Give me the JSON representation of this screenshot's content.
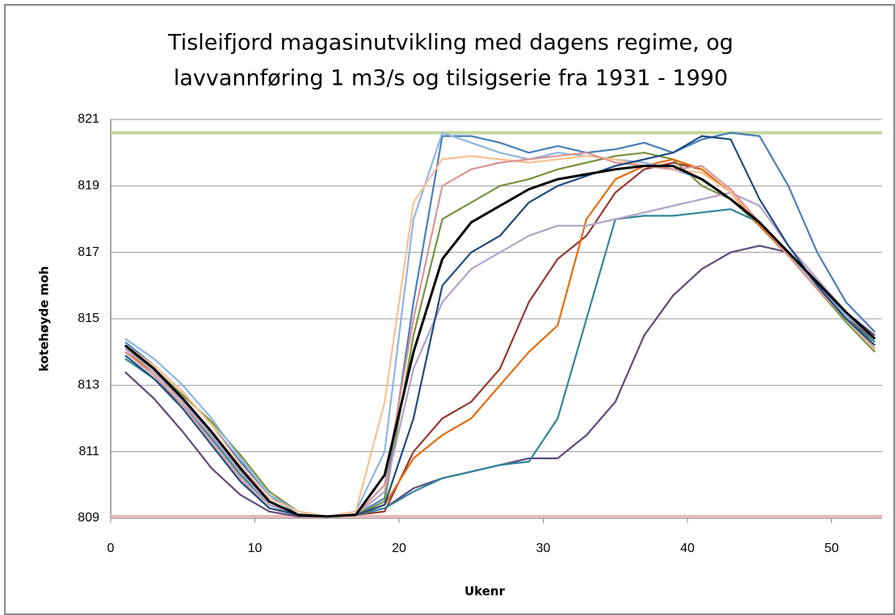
{
  "chart_data": {
    "type": "line",
    "title": [
      "Tisleifjord  magasinutvikling med dagens regime, og",
      "lavvannføring 1 m3/s og tilsigserie fra 1931 - 1990"
    ],
    "x_label": "Ukenr",
    "y_label": "kotehøyde moh",
    "xlim": [
      0,
      53.5
    ],
    "xticks": [
      0,
      10,
      20,
      30,
      40,
      50
    ],
    "ylim": [
      809,
      821
    ],
    "yticks": [
      809,
      811,
      813,
      815,
      817,
      819,
      821
    ],
    "grid": true,
    "x": [
      1,
      3,
      5,
      7,
      9,
      11,
      13,
      15,
      17,
      19,
      21,
      23,
      25,
      27,
      29,
      31,
      33,
      35,
      37,
      39,
      41,
      43,
      45,
      47,
      49,
      51,
      53
    ],
    "reference_lines": [
      {
        "value": 820.6,
        "color": "#c3d69b"
      },
      {
        "value": 809.05,
        "color": "#e6b9b8"
      }
    ],
    "series": [
      {
        "color": "#4a7ebb",
        "values": [
          814.3,
          813.6,
          812.8,
          811.8,
          810.7,
          809.7,
          809.1,
          809.05,
          809.1,
          809.6,
          815.5,
          820.5,
          820.5,
          820.3,
          820.0,
          820.2,
          820.0,
          820.1,
          820.3,
          820.0,
          820.4,
          820.6,
          820.5,
          819.0,
          817.0,
          815.5,
          814.6
        ]
      },
      {
        "color": "#953735",
        "values": [
          814.0,
          813.4,
          812.5,
          811.5,
          810.4,
          809.4,
          809.1,
          809.05,
          809.1,
          809.2,
          811.0,
          812.0,
          812.5,
          813.5,
          815.5,
          816.8,
          817.5,
          818.8,
          819.5,
          819.7,
          819.5,
          818.8,
          817.9,
          817.0,
          816.0,
          815.1,
          814.3
        ]
      },
      {
        "color": "#77933c",
        "values": [
          814.1,
          813.5,
          812.7,
          811.9,
          810.9,
          809.8,
          809.2,
          809.05,
          809.1,
          809.5,
          814.5,
          818.0,
          818.5,
          819.0,
          819.2,
          819.5,
          819.7,
          819.9,
          820.0,
          819.8,
          819.0,
          818.6,
          817.8,
          816.9,
          815.9,
          814.9,
          814.0
        ]
      },
      {
        "color": "#5f497a",
        "values": [
          813.4,
          812.6,
          811.6,
          810.5,
          809.7,
          809.2,
          809.05,
          809.05,
          809.1,
          809.3,
          809.9,
          810.2,
          810.4,
          810.6,
          810.8,
          810.8,
          811.5,
          812.5,
          814.5,
          815.7,
          816.5,
          817.0,
          817.2,
          817.0,
          816.0,
          815.2,
          814.5
        ]
      },
      {
        "color": "#31859c",
        "values": [
          813.8,
          813.2,
          812.4,
          811.4,
          810.3,
          809.4,
          809.1,
          809.05,
          809.1,
          809.3,
          809.8,
          810.2,
          810.4,
          810.6,
          810.7,
          812.0,
          815.0,
          818.0,
          818.1,
          818.1,
          818.2,
          818.3,
          817.9,
          817.0,
          816.0,
          815.0,
          814.3
        ]
      },
      {
        "color": "#e46c0a",
        "values": [
          814.0,
          813.4,
          812.6,
          811.6,
          810.5,
          809.5,
          809.1,
          809.05,
          809.1,
          809.4,
          810.8,
          811.5,
          812.0,
          813.0,
          814.0,
          814.8,
          818.0,
          819.2,
          819.6,
          819.8,
          819.5,
          818.8,
          817.8,
          816.9,
          815.9,
          815.0,
          814.2
        ]
      },
      {
        "color": "#8eb4e3",
        "values": [
          814.4,
          813.8,
          813.0,
          812.0,
          810.8,
          809.7,
          809.2,
          809.05,
          809.2,
          811.0,
          818.0,
          820.6,
          820.3,
          820.0,
          819.8,
          820.0,
          819.9,
          819.8,
          819.7,
          819.5,
          819.2,
          818.6,
          817.9,
          817.0,
          816.0,
          815.1,
          814.4
        ]
      },
      {
        "color": "#b3a2c7",
        "values": [
          814.1,
          813.4,
          812.5,
          811.5,
          810.4,
          809.4,
          809.1,
          809.05,
          809.1,
          809.8,
          813.5,
          815.5,
          816.5,
          817.0,
          817.5,
          817.8,
          817.8,
          818.0,
          818.2,
          818.4,
          818.6,
          818.8,
          818.4,
          817.2,
          816.2,
          815.2,
          814.4
        ]
      },
      {
        "color": "#fac090",
        "values": [
          814.2,
          813.6,
          812.8,
          811.8,
          810.6,
          809.6,
          809.2,
          809.05,
          809.2,
          812.5,
          818.5,
          819.8,
          819.9,
          819.8,
          819.7,
          819.8,
          819.9,
          819.8,
          819.6,
          819.5,
          819.4,
          818.8,
          817.9,
          816.9,
          815.9,
          815.0,
          814.2
        ]
      },
      {
        "color": "#d99694",
        "values": [
          814.0,
          813.3,
          812.4,
          811.3,
          810.2,
          809.3,
          809.1,
          809.05,
          809.1,
          810.0,
          815.0,
          819.0,
          819.5,
          819.7,
          819.8,
          819.9,
          820.0,
          819.7,
          819.6,
          819.5,
          819.6,
          818.9,
          817.9,
          816.9,
          815.9,
          815.0,
          814.1
        ]
      },
      {
        "color": "#1f497d",
        "values": [
          813.9,
          813.2,
          812.3,
          811.2,
          810.1,
          809.3,
          809.1,
          809.05,
          809.1,
          809.4,
          812.0,
          816.0,
          817.0,
          817.5,
          818.5,
          819.0,
          819.3,
          819.6,
          819.8,
          820.0,
          820.5,
          820.4,
          818.6,
          817.2,
          816.0,
          815.0,
          814.2
        ]
      },
      {
        "color": "#000000",
        "width": 3,
        "values": [
          814.2,
          813.5,
          812.6,
          811.6,
          810.5,
          809.5,
          809.1,
          809.05,
          809.1,
          810.3,
          814.0,
          816.8,
          817.9,
          818.4,
          818.9,
          819.2,
          819.35,
          819.5,
          819.6,
          819.6,
          819.2,
          818.6,
          817.9,
          817.0,
          816.1,
          815.2,
          814.4
        ]
      }
    ]
  }
}
